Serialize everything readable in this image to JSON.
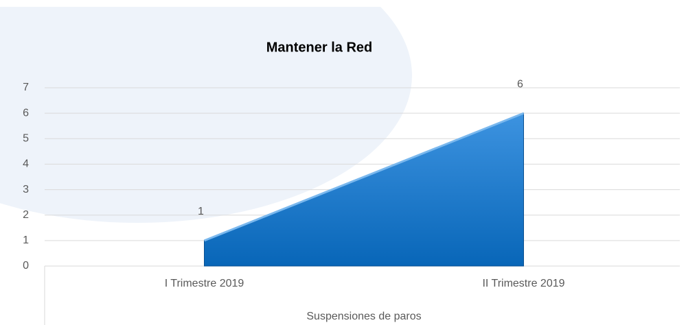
{
  "chart_data": {
    "type": "area",
    "title": "Mantener la Red",
    "categories": [
      "I Trimestre 2019",
      "II Trimestre 2019"
    ],
    "values": [
      1,
      6
    ],
    "color": "#0a70c8",
    "ylim": [
      0,
      7
    ],
    "yticks": [
      0,
      1,
      2,
      3,
      4,
      5,
      6,
      7
    ],
    "x_label": "Suspensiones de paros",
    "grid": true
  }
}
